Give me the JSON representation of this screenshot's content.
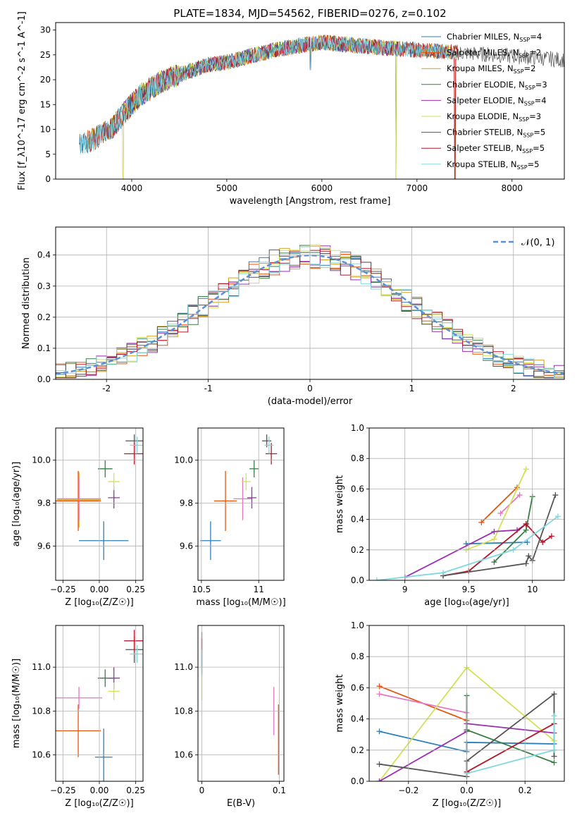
{
  "colors": {
    "chabrier_miles": "#2c7fb8",
    "salpeter_miles": "#e6550d",
    "kroupa_miles": "#d4a017",
    "chabrier_elodie": "#3a7d44",
    "salpeter_elodie": "#9b30b0",
    "kroupa_elodie": "#d4e157",
    "chabrier_stelib": "#555555",
    "salpeter_stelib": "#b2182b",
    "kroupa_stelib": "#80d8e0",
    "gaussian": "#5b8fd6",
    "grid": "#b0b0b0"
  },
  "chart_data": [
    {
      "id": "spectrum",
      "type": "line",
      "title": "PLATE=1834, MJD=54562, FIBERID=0276, z=0.102",
      "xlabel": "wavelength [Angstrom, rest frame]",
      "ylabel": "Flux [f_λ10^-17 erg cm^-2 s^-1 A^-1]",
      "xlim": [
        3200,
        8550
      ],
      "ylim": [
        0,
        31.5
      ],
      "xticks": [
        4000,
        5000,
        6000,
        7000,
        8000
      ],
      "yticks": [
        0,
        5,
        10,
        15,
        20,
        25,
        30
      ],
      "grid": false,
      "legend_position": "right",
      "legend": [
        {
          "label": "Chabrier MILES, N",
          "sub": "SSP",
          "tail": "=4",
          "color_key": "chabrier_miles"
        },
        {
          "label": "Salpeter MILES, N",
          "sub": "SSP",
          "tail": "=2",
          "color_key": "salpeter_miles"
        },
        {
          "label": "Kroupa MILES, N",
          "sub": "SSP",
          "tail": "=2",
          "color_key": "kroupa_miles"
        },
        {
          "label": "Chabrier ELODIE, N",
          "sub": "SSP",
          "tail": "=3",
          "color_key": "chabrier_elodie"
        },
        {
          "label": "Salpeter ELODIE, N",
          "sub": "SSP",
          "tail": "=4",
          "color_key": "salpeter_elodie"
        },
        {
          "label": "Kroupa ELODIE, N",
          "sub": "SSP",
          "tail": "=3",
          "color_key": "kroupa_elodie"
        },
        {
          "label": "Chabrier STELIB, N",
          "sub": "SSP",
          "tail": "=5",
          "color_key": "chabrier_stelib"
        },
        {
          "label": "Salpeter STELIB, N",
          "sub": "SSP",
          "tail": "=5",
          "color_key": "salpeter_stelib"
        },
        {
          "label": "Kroupa STELIB, N",
          "sub": "SSP",
          "tail": "=5",
          "color_key": "kroupa_stelib"
        }
      ],
      "continuum": {
        "x": [
          3450,
          3600,
          3800,
          3950,
          4100,
          4300,
          4500,
          4800,
          5000,
          5200,
          5500,
          5800,
          6000,
          6300,
          6600,
          7000,
          7400,
          7800,
          8200,
          8550
        ],
        "y": [
          7,
          8,
          10.5,
          14,
          17,
          19.5,
          21,
          23,
          23.5,
          24.5,
          26,
          27,
          27.5,
          27,
          26.5,
          26,
          25.5,
          25,
          24.5,
          24
        ]
      },
      "dips": [
        {
          "x": 3910,
          "depth_to": 0
        },
        {
          "x": 5090,
          "depth_to": 23
        },
        {
          "x": 5880,
          "depth_to": 22
        },
        {
          "x": 6780,
          "depth_to": 0
        },
        {
          "x": 7400,
          "depth_to": 0
        }
      ]
    },
    {
      "id": "residuals",
      "type": "histogram",
      "xlabel": "(data-model)/error",
      "ylabel": "Normed distribution",
      "xlim": [
        -2.5,
        2.5
      ],
      "ylim": [
        0,
        0.49
      ],
      "xticks": [
        -2,
        -1,
        0,
        1,
        2
      ],
      "yticks": [
        0.0,
        0.1,
        0.2,
        0.3,
        0.4
      ],
      "grid": true,
      "bin_width": 0.1,
      "legend": [
        {
          "label": "𝒩(0, 1)",
          "color_key": "gaussian",
          "style": "dashed"
        }
      ]
    },
    {
      "id": "age_vs_Z",
      "type": "scatter",
      "xlabel": "Z [log₁₀(Z/Z☉)]",
      "ylabel": "age  [log₁₀(age/yr)]",
      "xlim": [
        -0.3,
        0.3
      ],
      "ylim": [
        9.44,
        10.15
      ],
      "xticks": [
        -0.25,
        0,
        0.25
      ],
      "xtick_labels": [
        "−0.25",
        "0.00",
        "0.25"
      ],
      "yticks": [
        9.6,
        9.8,
        10.0
      ],
      "grid": true,
      "points": [
        {
          "series": "chabrier_miles",
          "x": 0.03,
          "y": 9.625,
          "xerr": 0.17,
          "yerr": 0.09
        },
        {
          "series": "salpeter_miles",
          "x": -0.145,
          "y": 9.81,
          "xerr": 0.155,
          "yerr": 0.14
        },
        {
          "series": "kroupa_miles",
          "x": -0.14,
          "y": 9.815,
          "xerr": 0.15,
          "yerr": 0.13
        },
        {
          "series": "chabrier_elodie",
          "x": 0.04,
          "y": 9.96,
          "xerr": 0.05,
          "yerr": 0.04
        },
        {
          "series": "salpeter_elodie",
          "x": 0.1,
          "y": 9.825,
          "xerr": 0.04,
          "yerr": 0.05
        },
        {
          "series": "kroupa_elodie",
          "x": 0.1,
          "y": 9.9,
          "xerr": 0.04,
          "yerr": 0.04
        },
        {
          "series": "chabrier_stelib",
          "x": 0.24,
          "y": 10.09,
          "xerr": 0.06,
          "yerr": 0.03
        },
        {
          "series": "salpeter_stelib",
          "x": 0.24,
          "y": 10.03,
          "xerr": 0.07,
          "yerr": 0.05
        },
        {
          "series": "kroupa_stelib",
          "x": 0.26,
          "y": 10.07,
          "xerr": 0.05,
          "yerr": 0.04
        },
        {
          "series": "pink",
          "x": -0.14,
          "y": 9.82,
          "xerr": 0.15,
          "yerr": 0.1
        }
      ]
    },
    {
      "id": "age_vs_mass",
      "type": "scatter",
      "xlabel": "mass [log₁₀(M/M☉)]",
      "ylabel": "",
      "xlim": [
        10.47,
        11.22
      ],
      "ylim": [
        9.44,
        10.15
      ],
      "xticks": [
        10.5,
        11.0
      ],
      "yticks": [
        9.6,
        9.8,
        10.0
      ],
      "grid": true,
      "points": [
        {
          "series": "chabrier_miles",
          "x": 10.58,
          "y": 9.625,
          "xerr": 0.09,
          "yerr": 0.09
        },
        {
          "series": "salpeter_miles",
          "x": 10.71,
          "y": 9.81,
          "xerr": 0.1,
          "yerr": 0.14
        },
        {
          "series": "pink",
          "x": 10.86,
          "y": 9.82,
          "xerr": 0.08,
          "yerr": 0.1
        },
        {
          "series": "chabrier_elodie",
          "x": 10.96,
          "y": 9.96,
          "xerr": 0.04,
          "yerr": 0.04
        },
        {
          "series": "salpeter_elodie",
          "x": 10.94,
          "y": 9.825,
          "xerr": 0.04,
          "yerr": 0.05
        },
        {
          "series": "kroupa_elodie",
          "x": 10.89,
          "y": 9.9,
          "xerr": 0.04,
          "yerr": 0.04
        },
        {
          "series": "chabrier_stelib",
          "x": 11.07,
          "y": 10.09,
          "xerr": 0.04,
          "yerr": 0.03
        },
        {
          "series": "salpeter_stelib",
          "x": 11.11,
          "y": 10.03,
          "xerr": 0.05,
          "yerr": 0.05
        },
        {
          "series": "kroupa_stelib",
          "x": 11.09,
          "y": 10.07,
          "xerr": 0.04,
          "yerr": 0.04
        }
      ]
    },
    {
      "id": "weight_vs_age",
      "type": "line",
      "xlabel": "age  [log₁₀(age/yr)]",
      "ylabel": "mass weight",
      "xlim": [
        8.72,
        10.25
      ],
      "ylim": [
        0,
        1.0
      ],
      "xticks": [
        9.0,
        9.5,
        10.0
      ],
      "yticks": [
        0.0,
        0.2,
        0.4,
        0.6,
        0.8,
        1.0
      ],
      "grid": true,
      "series": [
        {
          "name": "chabrier_miles",
          "x": [
            9.48,
            9.96
          ],
          "y": [
            0.24,
            0.25
          ]
        },
        {
          "name": "salpeter_miles",
          "x": [
            9.6,
            9.88
          ],
          "y": [
            0.38,
            0.61
          ]
        },
        {
          "name": "pink",
          "x": [
            9.75,
            9.9
          ],
          "y": [
            0.44,
            0.56
          ]
        },
        {
          "name": "kroupa_elodie",
          "x": [
            9.48,
            9.7,
            9.95
          ],
          "y": [
            0.2,
            0.27,
            0.73
          ]
        },
        {
          "name": "salpeter_elodie",
          "x": [
            9.0,
            9.7,
            9.88,
            9.95
          ],
          "y": [
            0.02,
            0.32,
            0.33,
            0.37
          ]
        },
        {
          "name": "chabrier_elodie",
          "x": [
            9.7,
            9.95,
            10.0
          ],
          "y": [
            0.12,
            0.33,
            0.55
          ]
        },
        {
          "name": "salpeter_stelib",
          "x": [
            9.3,
            9.5,
            9.95,
            10.08,
            10.15
          ],
          "y": [
            0.03,
            0.06,
            0.37,
            0.25,
            0.29
          ]
        },
        {
          "name": "chabrier_stelib",
          "x": [
            9.3,
            9.95,
            9.97,
            10.0,
            10.18
          ],
          "y": [
            0.03,
            0.11,
            0.16,
            0.13,
            0.56
          ]
        },
        {
          "name": "kroupa_stelib",
          "x": [
            8.78,
            9.3,
            9.85,
            10.2
          ],
          "y": [
            0.0,
            0.05,
            0.2,
            0.42
          ]
        }
      ]
    },
    {
      "id": "mass_vs_Z",
      "type": "scatter",
      "xlabel": "Z [log₁₀(Z/Z☉)]",
      "ylabel": "mass [log₁₀(M/M☉)]",
      "xlim": [
        -0.3,
        0.3
      ],
      "ylim": [
        10.48,
        11.19
      ],
      "xticks": [
        -0.25,
        0,
        0.25
      ],
      "xtick_labels": [
        "−0.25",
        "0.00",
        "0.25"
      ],
      "yticks": [
        10.6,
        10.8,
        11.0
      ],
      "grid": true,
      "points": [
        {
          "series": "chabrier_miles",
          "x": 0.03,
          "y": 10.59,
          "xerr": 0.06,
          "yerr": 0.13
        },
        {
          "series": "salpeter_miles",
          "x": -0.145,
          "y": 10.71,
          "xerr": 0.155,
          "yerr": 0.12
        },
        {
          "series": "pink",
          "x": -0.14,
          "y": 10.86,
          "xerr": 0.16,
          "yerr": 0.05
        },
        {
          "series": "chabrier_elodie",
          "x": 0.04,
          "y": 10.95,
          "xerr": 0.05,
          "yerr": 0.04
        },
        {
          "series": "salpeter_elodie",
          "x": 0.1,
          "y": 10.95,
          "xerr": 0.04,
          "yerr": 0.05
        },
        {
          "series": "kroupa_elodie",
          "x": 0.1,
          "y": 10.89,
          "xerr": 0.04,
          "yerr": 0.04
        },
        {
          "series": "chabrier_stelib",
          "x": 0.24,
          "y": 11.08,
          "xerr": 0.06,
          "yerr": 0.06
        },
        {
          "series": "salpeter_stelib",
          "x": 0.24,
          "y": 11.12,
          "xerr": 0.07,
          "yerr": 0.05
        },
        {
          "series": "kroupa_stelib",
          "x": 0.26,
          "y": 11.06,
          "xerr": 0.05,
          "yerr": 0.04
        }
      ]
    },
    {
      "id": "mass_vs_ebv",
      "type": "scatter",
      "xlabel": "E(B-V)",
      "ylabel": "",
      "xlim": [
        -0.005,
        0.106
      ],
      "ylim": [
        10.48,
        11.19
      ],
      "xticks": [
        0.0,
        0.1
      ],
      "yticks": [
        10.6,
        10.8,
        11.0
      ],
      "grid": true,
      "points": [
        {
          "series": "chabrier_stelib",
          "x": 0.0,
          "y": 11.08,
          "xerr": 0.0,
          "yerr": 0.08
        },
        {
          "series": "salpeter_stelib",
          "x": 0.0,
          "y": 11.05,
          "xerr": 0.0,
          "yerr": 0.08
        },
        {
          "series": "kroupa_elodie",
          "x": 0.0,
          "y": 10.92,
          "xerr": 0.0,
          "yerr": 0.07
        },
        {
          "series": "kroupa_stelib",
          "x": 0.0,
          "y": 11.02,
          "xerr": 0.0,
          "yerr": 0.06
        },
        {
          "series": "pink",
          "x": 0.093,
          "y": 10.8,
          "xerr": 0.0,
          "yerr": 0.11
        },
        {
          "series": "salpeter_miles",
          "x": 0.099,
          "y": 10.67,
          "xerr": 0.0,
          "yerr": 0.16
        }
      ]
    },
    {
      "id": "weight_vs_Z",
      "type": "line",
      "xlabel": "Z [log₁₀(Z/Z☉)]",
      "ylabel": "mass weight",
      "xlim": [
        -0.335,
        0.335
      ],
      "ylim": [
        0,
        1.0
      ],
      "xticks": [
        -0.2,
        0.0,
        0.2
      ],
      "xtick_labels": [
        "−0.2",
        "0.0",
        "0.2"
      ],
      "yticks": [
        0.0,
        0.2,
        0.4,
        0.6,
        0.8,
        1.0
      ],
      "grid": true,
      "series": [
        {
          "name": "salpeter_miles",
          "x": [
            -0.3,
            0.0
          ],
          "y": [
            0.61,
            0.39
          ]
        },
        {
          "name": "pink",
          "x": [
            -0.3,
            0.0
          ],
          "y": [
            0.56,
            0.44
          ]
        },
        {
          "name": "chabrier_miles",
          "x": [
            -0.3,
            0.0,
            0.0,
            0.3
          ],
          "y": [
            0.32,
            0.19,
            0.25,
            0.24
          ]
        },
        {
          "name": "kroupa_elodie",
          "x": [
            -0.3,
            0.0,
            0.3
          ],
          "y": [
            0.0,
            0.73,
            0.26
          ]
        },
        {
          "name": "salpeter_elodie",
          "x": [
            -0.3,
            0.0,
            0.0,
            0.3
          ],
          "y": [
            0.0,
            0.32,
            0.37,
            0.31
          ]
        },
        {
          "name": "chabrier_elodie",
          "x": [
            0.0,
            0.0,
            0.3
          ],
          "y": [
            0.55,
            0.33,
            0.12
          ]
        },
        {
          "name": "chabrier_stelib",
          "x": [
            -0.3,
            0.0,
            0.0,
            0.3,
            0.3
          ],
          "y": [
            0.11,
            0.03,
            0.13,
            0.56,
            0.16
          ]
        },
        {
          "name": "salpeter_stelib",
          "x": [
            0.0,
            0.3
          ],
          "y": [
            0.06,
            0.37
          ]
        },
        {
          "name": "kroupa_stelib",
          "x": [
            0.0,
            0.3,
            0.3
          ],
          "y": [
            0.05,
            0.2,
            0.42
          ]
        }
      ]
    }
  ]
}
